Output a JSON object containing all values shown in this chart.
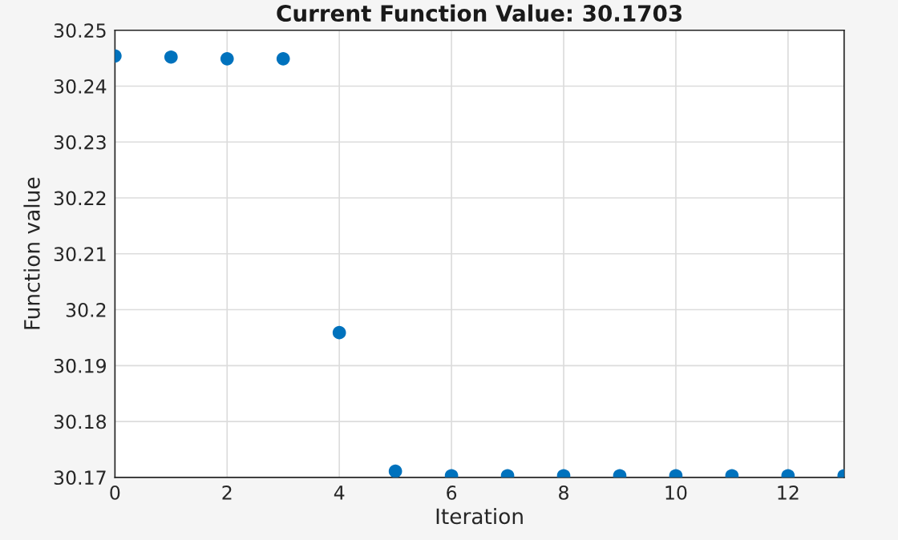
{
  "chart_data": {
    "type": "scatter",
    "title": "Current Function Value: 30.1703",
    "xlabel": "Iteration",
    "ylabel": "Function value",
    "x": [
      0,
      1,
      2,
      3,
      4,
      5,
      6,
      7,
      8,
      9,
      10,
      11,
      12,
      13
    ],
    "series": [
      {
        "color": "#0072bd",
        "values": [
          30.2454,
          30.2452,
          30.2449,
          30.2449,
          30.1959,
          30.1711,
          30.1703,
          30.1703,
          30.1703,
          30.1703,
          30.1703,
          30.1703,
          30.1703,
          30.1703
        ]
      }
    ],
    "xlim": [
      0,
      13
    ],
    "xticks": [
      0,
      2,
      4,
      6,
      8,
      10,
      12
    ],
    "ylim": [
      30.17,
      30.25
    ],
    "yticks": [
      {
        "value": 30.17,
        "label": "30.17"
      },
      {
        "value": 30.18,
        "label": "30.18"
      },
      {
        "value": 30.19,
        "label": "30.19"
      },
      {
        "value": 30.2,
        "label": "30.2"
      },
      {
        "value": 30.21,
        "label": "30.21"
      },
      {
        "value": 30.22,
        "label": "30.22"
      },
      {
        "value": 30.23,
        "label": "30.23"
      },
      {
        "value": 30.24,
        "label": "30.24"
      },
      {
        "value": 30.25,
        "label": "30.25"
      }
    ],
    "grid": true,
    "marker": "circle"
  }
}
